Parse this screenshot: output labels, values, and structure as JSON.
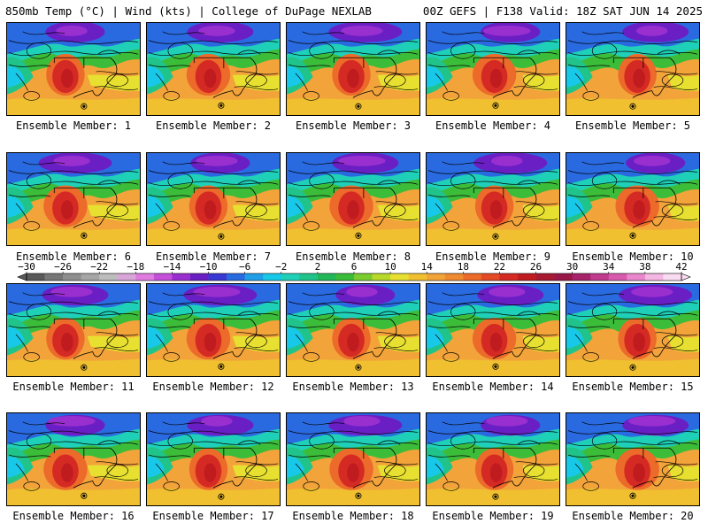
{
  "header": {
    "left": "850mb Temp (°C) | Wind (kts) | College of DuPage NEXLAB",
    "right": "00Z GEFS | F138 Valid: 18Z SAT JUN 14 2025"
  },
  "members": [
    "Ensemble Member: 1",
    "Ensemble Member: 2",
    "Ensemble Member: 3",
    "Ensemble Member: 4",
    "Ensemble Member: 5",
    "Ensemble Member: 6",
    "Ensemble Member: 7",
    "Ensemble Member: 8",
    "Ensemble Member: 9",
    "Ensemble Member: 10",
    "Ensemble Member: 11",
    "Ensemble Member: 12",
    "Ensemble Member: 13",
    "Ensemble Member: 14",
    "Ensemble Member: 15",
    "Ensemble Member: 16",
    "Ensemble Member: 17",
    "Ensemble Member: 18",
    "Ensemble Member: 19",
    "Ensemble Member: 20"
  ],
  "colorbar": {
    "labels": [
      "−30",
      "−26",
      "−22",
      "−18",
      "−14",
      "−10",
      "−6",
      "−2",
      "2",
      "6",
      "10",
      "14",
      "18",
      "22",
      "26",
      "30",
      "34",
      "38",
      "42"
    ],
    "colors": [
      "#595959",
      "#777777",
      "#8e8e8e",
      "#a6a6a6",
      "#bdbdbd",
      "#d9a6d9",
      "#e07ce0",
      "#c44fd9",
      "#9a2fd0",
      "#6a1fc4",
      "#3838d4",
      "#2a6ae0",
      "#1f9fe8",
      "#18c8e8",
      "#1fd0b8",
      "#20c48a",
      "#22b85a",
      "#3cbd3a",
      "#7bcc2e",
      "#b8d82a",
      "#e8e030",
      "#f0c030",
      "#f2a33a",
      "#f08a30",
      "#ec6a2a",
      "#e44a26",
      "#d52a24",
      "#c01c20",
      "#a81a30",
      "#9a1848",
      "#a8246a",
      "#c03a8e",
      "#d85aae",
      "#ea86cc",
      "#f4b6e2",
      "#fadcf2"
    ]
  }
}
